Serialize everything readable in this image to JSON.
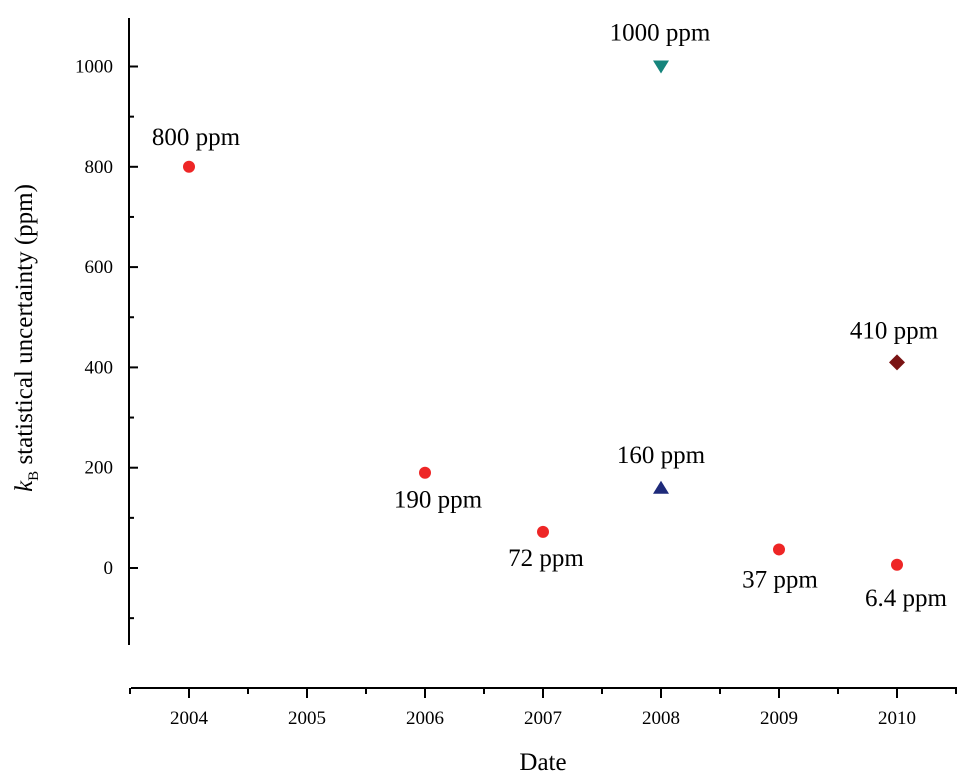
{
  "chart_data": {
    "type": "scatter",
    "xlabel": "Date",
    "ylabel_symbol": "k",
    "ylabel_subscript": "B",
    "ylabel_rest": " statistical uncertainty (ppm)",
    "xlim": [
      2003.5,
      2010.5
    ],
    "ylim": [
      -150,
      1100
    ],
    "x_ticks": [
      2004,
      2005,
      2006,
      2007,
      2008,
      2009,
      2010
    ],
    "y_ticks": [
      0,
      200,
      400,
      600,
      800,
      1000
    ],
    "grid": false,
    "legend": "none",
    "points": [
      {
        "x": 2004,
        "y": 800,
        "marker": "circle",
        "color": "#ee2626",
        "label": "800 ppm",
        "label_pos": "above"
      },
      {
        "x": 2006,
        "y": 190,
        "marker": "circle",
        "color": "#ee2626",
        "label": "190 ppm",
        "label_pos": "below"
      },
      {
        "x": 2007,
        "y": 72,
        "marker": "circle",
        "color": "#ee2626",
        "label": "72 ppm",
        "label_pos": "below"
      },
      {
        "x": 2009,
        "y": 37,
        "marker": "circle",
        "color": "#ee2626",
        "label": "37 ppm",
        "label_pos": "below"
      },
      {
        "x": 2010,
        "y": 6.4,
        "marker": "circle",
        "color": "#ee2626",
        "label": "6.4 ppm",
        "label_pos": "below"
      },
      {
        "x": 2008,
        "y": 1000,
        "marker": "triangle-down",
        "color": "#16857c",
        "label": "1000 ppm",
        "label_pos": "above"
      },
      {
        "x": 2008,
        "y": 160,
        "marker": "triangle-up",
        "color": "#1e2a7a",
        "label": "160 ppm",
        "label_pos": "above"
      },
      {
        "x": 2010,
        "y": 410,
        "marker": "diamond",
        "color": "#7a1414",
        "label": "410 ppm",
        "label_pos": "above"
      }
    ]
  }
}
